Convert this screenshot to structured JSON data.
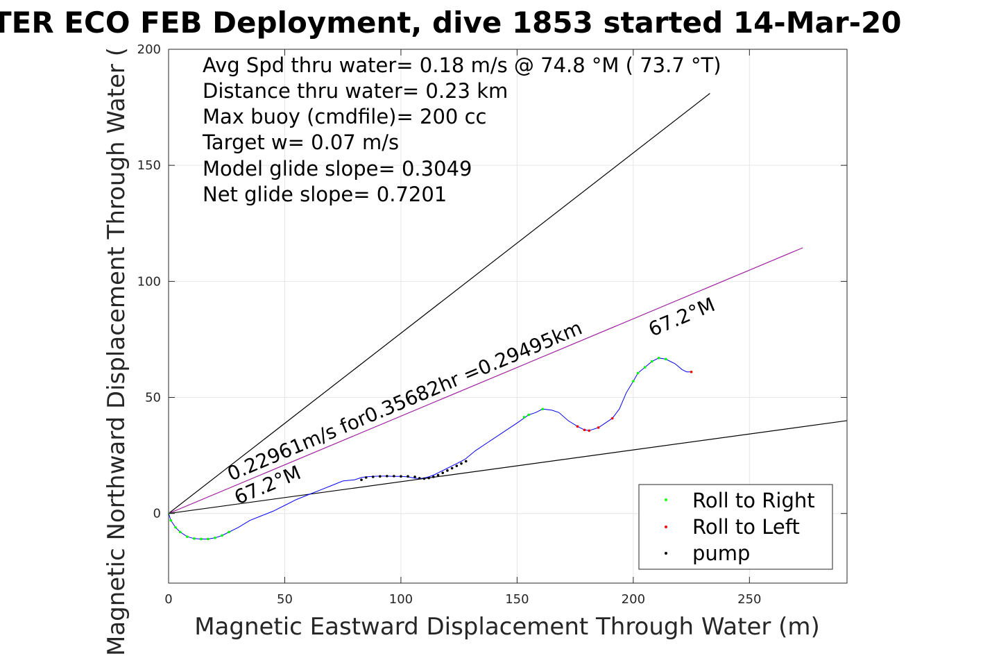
{
  "chart_data": {
    "type": "line",
    "title": "TER ECO FEB Deployment, dive 1853 started 14-Mar-20",
    "xlabel": "Magnetic Eastward Displacement Through Water (m)",
    "ylabel": "Magnetic Northward Displacement Through Water (",
    "xlim": [
      0,
      292
    ],
    "ylim": [
      -30,
      200
    ],
    "xticks": [
      0,
      50,
      100,
      150,
      200,
      250
    ],
    "yticks": [
      0,
      50,
      100,
      150,
      200
    ],
    "grid": true,
    "legend_position": "bottom-right",
    "legend": [
      {
        "label": "Roll to Right",
        "color": "#00ff00"
      },
      {
        "label": "Roll to Left",
        "color": "#ff0000"
      },
      {
        "label": "pump",
        "color": "#000000"
      }
    ],
    "annotations": {
      "lines": [
        "Avg Spd thru water=  0.18 m/s @  74.8 °M ( 73.7 °T)",
        "Distance thru water=  0.23 km",
        "Max buoy (cmdfile)= 200 cc",
        "Target w= 0.07 m/s",
        "Model glide slope= 0.3049",
        "Net glide slope= 0.7201"
      ],
      "speed_label": "0.22961m/s for0.35682hr =0.29495km",
      "heading_label_near": "67.2°M",
      "heading_label_far": "67.2°M"
    },
    "reference_lines": [
      {
        "name": "upper",
        "x": [
          0,
          233
        ],
        "y": [
          0,
          181
        ],
        "color": "#000000"
      },
      {
        "name": "heading",
        "x": [
          0,
          273
        ],
        "y": [
          0,
          114.5
        ],
        "color": "#a020a0"
      },
      {
        "name": "lower",
        "x": [
          0,
          292
        ],
        "y": [
          0,
          40
        ],
        "color": "#000000"
      }
    ],
    "track": {
      "color": "#0000ff",
      "x": [
        0,
        1,
        3,
        5,
        8,
        11,
        14,
        17,
        20,
        23,
        26,
        30,
        35,
        40,
        45,
        50,
        55,
        60,
        65,
        70,
        75,
        80,
        83,
        85,
        88,
        91,
        94,
        97,
        100,
        103,
        106,
        108,
        110,
        112,
        114,
        116,
        118,
        120,
        122,
        124,
        126,
        128,
        132,
        138,
        144,
        150,
        155,
        158,
        161,
        165,
        168,
        172,
        176,
        179,
        181,
        185,
        188,
        191,
        194,
        197,
        200,
        202,
        205,
        208,
        211,
        214,
        218,
        221,
        223,
        225
      ],
      "y": [
        0,
        -3,
        -6,
        -8,
        -10,
        -10.8,
        -11,
        -11,
        -10.5,
        -9.5,
        -8,
        -6,
        -3,
        -1,
        1,
        3.5,
        6,
        8,
        10,
        12,
        14,
        14.5,
        15.5,
        15.8,
        16,
        16.1,
        16.1,
        16,
        16,
        15.8,
        15.2,
        15,
        15.3,
        15.8,
        16.5,
        17.5,
        18.5,
        19.5,
        20.5,
        21.5,
        22.5,
        23.7,
        27,
        31,
        35,
        39,
        42.5,
        43.5,
        45,
        44.5,
        43.5,
        40,
        37.5,
        36,
        35.7,
        37,
        39,
        41,
        45,
        52,
        57,
        60.5,
        63,
        65.5,
        67,
        66.5,
        64.5,
        62,
        61,
        61
      ]
    },
    "roll_right_points": {
      "x": [
        0,
        1,
        3,
        5,
        8,
        11,
        14,
        17,
        20,
        23,
        26,
        153,
        155,
        161,
        200,
        202,
        205,
        208,
        211,
        214
      ],
      "y": [
        0,
        -3,
        -6,
        -8,
        -10,
        -10.8,
        -11,
        -11,
        -10.5,
        -9.5,
        -8,
        41.5,
        42.5,
        45,
        57,
        60.5,
        63,
        65.5,
        67,
        66.5
      ]
    },
    "roll_left_points": {
      "x": [
        176,
        179,
        181,
        185,
        191,
        225
      ],
      "y": [
        37.5,
        36,
        35.7,
        37,
        41,
        61
      ]
    },
    "pump_points": {
      "x": [
        83,
        85,
        88,
        91,
        94,
        97,
        100,
        103,
        106,
        108,
        110,
        112,
        114,
        116,
        118,
        120,
        122,
        124,
        126,
        128
      ],
      "y": [
        14.5,
        15.5,
        15.8,
        16,
        16.1,
        16.1,
        16,
        16,
        15.8,
        15.2,
        15,
        15.3,
        15.8,
        16.5,
        17.5,
        18.5,
        19.5,
        20.5,
        21.5,
        22.5
      ]
    }
  }
}
